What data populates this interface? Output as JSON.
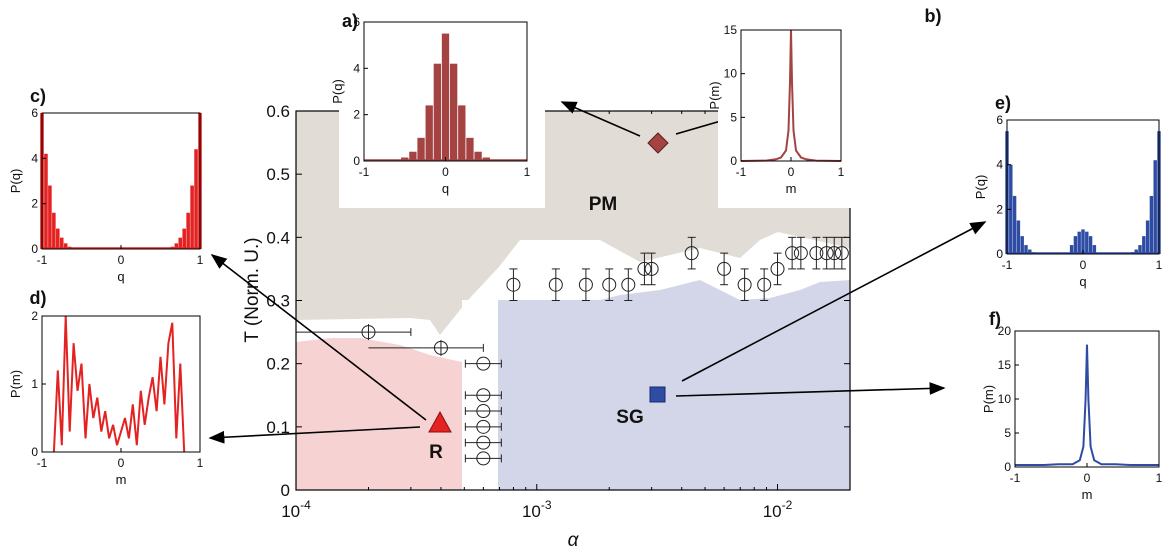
{
  "main": {
    "xlabel": "α",
    "ylabel": "T (Norm. U.)",
    "xticks": [
      0.0001,
      0.001,
      0.01
    ],
    "xtick_labels": [
      {
        "b": "10",
        "e": "-4"
      },
      {
        "b": "10",
        "e": "-3"
      },
      {
        "b": "10",
        "e": "-2"
      }
    ],
    "yticks": [
      "0",
      "0.1",
      "0.2",
      "0.3",
      "0.4",
      "0.5",
      "0.6"
    ],
    "regions": {
      "pm": "PM",
      "sg": "SG",
      "r": "R"
    }
  },
  "colors": {
    "pm": "#e1dcd5",
    "sg": "#d3d6e8",
    "r": "#f7d2d3",
    "red": "#e42222",
    "blue": "#2e4ca4",
    "brown": "#a54242"
  },
  "insets": {
    "a": {
      "panel": "a)",
      "xlabel": "q",
      "ylabel": "P(q)",
      "xticks": [
        "-1",
        "0",
        "1"
      ],
      "yticks": [
        "0",
        "2",
        "4",
        "6"
      ]
    },
    "b": {
      "panel": "b)",
      "xlabel": "m",
      "ylabel": "P(m)",
      "xticks": [
        "-1",
        "0",
        "1"
      ],
      "yticks": [
        "0",
        "5",
        "10",
        "15"
      ]
    },
    "c": {
      "panel": "c)",
      "xlabel": "q",
      "ylabel": "P(q)",
      "xticks": [
        "-1",
        "0",
        "1"
      ],
      "yticks": [
        "0",
        "2",
        "4",
        "6"
      ]
    },
    "d": {
      "panel": "d)",
      "xlabel": "m",
      "ylabel": "P(m)",
      "xticks": [
        "-1",
        "0",
        "1"
      ],
      "yticks": [
        "0",
        "1",
        "2"
      ]
    },
    "e": {
      "panel": "e)",
      "xlabel": "q",
      "ylabel": "P(q)",
      "xticks": [
        "-1",
        "0",
        "1"
      ],
      "yticks": [
        "0",
        "2",
        "4",
        "6"
      ]
    },
    "f": {
      "panel": "f)",
      "xlabel": "m",
      "ylabel": "P(m)",
      "xticks": [
        "-1",
        "0",
        "1"
      ],
      "yticks": [
        "0",
        "5",
        "10",
        "15",
        "20"
      ]
    }
  },
  "chart_data": [
    {
      "id": "main",
      "type": "scatter",
      "xscale": "log",
      "xlim": [
        0.0001,
        0.02
      ],
      "ylim": [
        0,
        0.6
      ],
      "xlabel": "α",
      "ylabel": "T (Norm. U.)",
      "series": [
        {
          "x": [
            0.0002,
            0.0004,
            0.0006,
            0.0006,
            0.0006,
            0.0006,
            0.0006,
            0.0006,
            0.0008,
            0.0012,
            0.0016,
            0.002,
            0.0024,
            0.0028,
            0.003,
            0.0044,
            0.006,
            0.0073,
            0.0088,
            0.01,
            0.0115,
            0.0125,
            0.0145,
            0.016,
            0.0172,
            0.0185
          ],
          "y": [
            0.25,
            0.225,
            0.2,
            0.15,
            0.125,
            0.1,
            0.075,
            0.05,
            0.325,
            0.325,
            0.325,
            0.325,
            0.325,
            0.35,
            0.35,
            0.375,
            0.35,
            0.325,
            0.325,
            0.35,
            0.375,
            0.375,
            0.375,
            0.375,
            0.375,
            0.375
          ]
        }
      ],
      "regions": [
        "PM",
        "SG",
        "R"
      ],
      "markers": [
        {
          "label": "PM",
          "x": 0.0031,
          "y": 0.525
        },
        {
          "label": "R",
          "x": 0.0004,
          "y": 0.1
        },
        {
          "label": "SG",
          "x": 0.0031,
          "y": 0.15
        }
      ]
    },
    {
      "id": "a",
      "type": "bar",
      "xlabel": "q",
      "ylabel": "P(q)",
      "xlim": [
        -1,
        1
      ],
      "ylim": [
        0,
        6
      ],
      "x": [
        -0.6,
        -0.5,
        -0.4,
        -0.3,
        -0.2,
        -0.1,
        0,
        0.1,
        0.2,
        0.3,
        0.4,
        0.5,
        0.6
      ],
      "values": [
        0.05,
        0.15,
        0.4,
        1.0,
        2.4,
        4.2,
        5.5,
        4.2,
        2.4,
        1.0,
        0.4,
        0.15,
        0.05
      ]
    },
    {
      "id": "b",
      "type": "line",
      "xlabel": "m",
      "ylabel": "P(m)",
      "xlim": [
        -1,
        1
      ],
      "ylim": [
        0,
        15
      ],
      "x": [
        -1,
        -0.5,
        -0.3,
        -0.2,
        -0.1,
        -0.05,
        -0.02,
        0,
        0.02,
        0.05,
        0.1,
        0.2,
        0.3,
        0.5,
        1
      ],
      "y": [
        0,
        0.05,
        0.2,
        0.4,
        1.2,
        3.5,
        9,
        15,
        9,
        3.5,
        1.2,
        0.4,
        0.2,
        0.05,
        0
      ]
    },
    {
      "id": "c",
      "type": "bar",
      "xlabel": "q",
      "ylabel": "P(q)",
      "xlim": [
        -1,
        1
      ],
      "ylim": [
        0,
        6
      ],
      "x": [
        -1,
        -0.95,
        -0.9,
        -0.85,
        -0.8,
        -0.75,
        -0.7,
        -0.65,
        -0.6,
        0.6,
        0.65,
        0.7,
        0.75,
        0.8,
        0.85,
        0.9,
        0.95,
        1
      ],
      "values": [
        6,
        4.2,
        2.8,
        1.6,
        0.9,
        0.5,
        0.25,
        0.1,
        0.05,
        0.05,
        0.1,
        0.25,
        0.5,
        0.9,
        1.6,
        2.8,
        4.4,
        6
      ]
    },
    {
      "id": "d",
      "type": "line",
      "xlabel": "m",
      "ylabel": "P(m)",
      "xlim": [
        -1,
        1
      ],
      "ylim": [
        0,
        2
      ],
      "x": [
        -0.85,
        -0.8,
        -0.75,
        -0.7,
        -0.65,
        -0.6,
        -0.55,
        -0.5,
        -0.45,
        -0.4,
        -0.35,
        -0.3,
        -0.25,
        -0.2,
        -0.15,
        -0.1,
        -0.05,
        0,
        0.05,
        0.1,
        0.15,
        0.2,
        0.25,
        0.3,
        0.35,
        0.4,
        0.45,
        0.5,
        0.55,
        0.6,
        0.65,
        0.7,
        0.75,
        0.8
      ],
      "y": [
        0,
        1.2,
        0.1,
        2.0,
        0.3,
        1.6,
        0.9,
        1.3,
        0.2,
        1.0,
        0.5,
        0.8,
        0.3,
        0.6,
        0.2,
        0.4,
        0.1,
        0.3,
        0.5,
        0.2,
        0.7,
        0.1,
        0.9,
        0.4,
        0.8,
        1.1,
        0.6,
        1.4,
        0.7,
        1.6,
        1.9,
        0.2,
        1.3,
        0
      ]
    },
    {
      "id": "e",
      "type": "bar",
      "xlabel": "q",
      "ylabel": "P(q)",
      "xlim": [
        -1,
        1
      ],
      "ylim": [
        0,
        6
      ],
      "x": [
        -1,
        -0.95,
        -0.9,
        -0.85,
        -0.8,
        -0.75,
        -0.7,
        -0.65,
        -0.15,
        -0.1,
        -0.05,
        0,
        0.05,
        0.1,
        0.15,
        0.65,
        0.7,
        0.75,
        0.8,
        0.85,
        0.9,
        0.95,
        1
      ],
      "values": [
        5.5,
        4.0,
        2.6,
        1.5,
        0.8,
        0.4,
        0.2,
        0.08,
        0.4,
        0.8,
        1.0,
        1.1,
        1.0,
        0.8,
        0.4,
        0.08,
        0.2,
        0.4,
        0.8,
        1.5,
        2.6,
        4.2,
        5.5
      ]
    },
    {
      "id": "f",
      "type": "line",
      "xlabel": "m",
      "ylabel": "P(m)",
      "xlim": [
        -1,
        1
      ],
      "ylim": [
        0,
        20
      ],
      "x": [
        -1,
        -0.6,
        -0.4,
        -0.2,
        -0.1,
        -0.05,
        -0.02,
        0,
        0.02,
        0.05,
        0.1,
        0.2,
        0.4,
        0.6,
        1
      ],
      "y": [
        0.3,
        0.3,
        0.4,
        0.4,
        1.0,
        3.0,
        10,
        18,
        10,
        3.0,
        1.0,
        0.4,
        0.4,
        0.3,
        0.3
      ]
    }
  ]
}
